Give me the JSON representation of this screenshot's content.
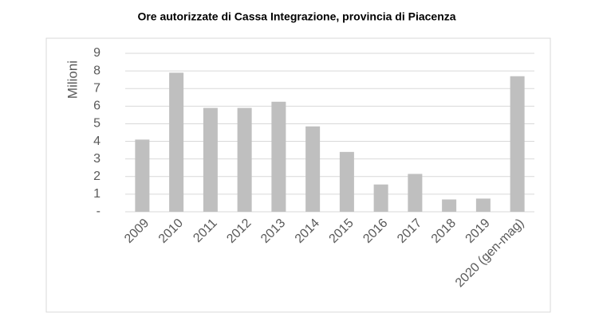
{
  "chart_data": {
    "type": "bar",
    "title": "Ore autorizzate di Cassa Integrazione, provincia di Piacenza",
    "y_label": "Milioni",
    "categories": [
      "2009",
      "2010",
      "2011",
      "2012",
      "2013",
      "2014",
      "2015",
      "2016",
      "2017",
      "2018",
      "2019",
      "2020 (gen-mag)"
    ],
    "values": [
      4.1,
      7.9,
      5.9,
      5.9,
      6.25,
      4.85,
      3.4,
      1.55,
      2.15,
      0.7,
      0.75,
      7.7
    ],
    "color": "#bfbfbf",
    "ylim": [
      0,
      9
    ],
    "yticks": [
      {
        "value": 0,
        "label": "-"
      },
      1,
      2,
      3,
      4,
      5,
      6,
      7,
      8,
      9
    ],
    "grid": true
  }
}
